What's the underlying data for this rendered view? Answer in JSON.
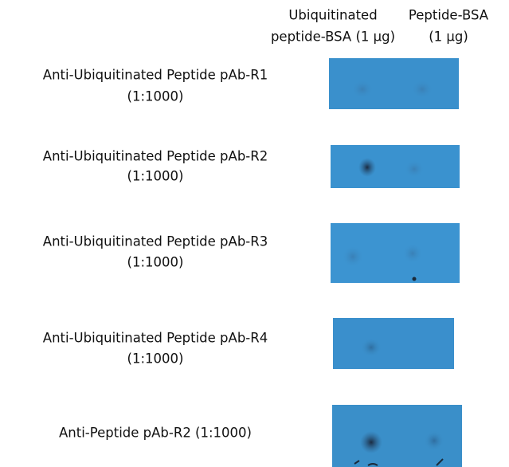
{
  "columns": [
    {
      "lines": [
        "Ubiquitinated",
        "peptide-BSA (1 µg)"
      ]
    },
    {
      "lines": [
        "Peptide-BSA",
        "(1 µg)"
      ]
    }
  ],
  "rows": [
    {
      "lines": [
        "Anti-Ubiquitinated Peptide pAb-R1",
        "(1:1000)"
      ]
    },
    {
      "lines": [
        "Anti-Ubiquitinated Peptide pAb-R2",
        "(1:1000)"
      ]
    },
    {
      "lines": [
        "Anti-Ubiquitinated Peptide pAb-R3",
        "(1:1000)"
      ]
    },
    {
      "lines": [
        "Anti-Ubiquitinated Peptide pAb-R4",
        "(1:1000)"
      ]
    },
    {
      "lines": [
        "Anti-Peptide pAb-R2 (1:1000)"
      ]
    }
  ]
}
